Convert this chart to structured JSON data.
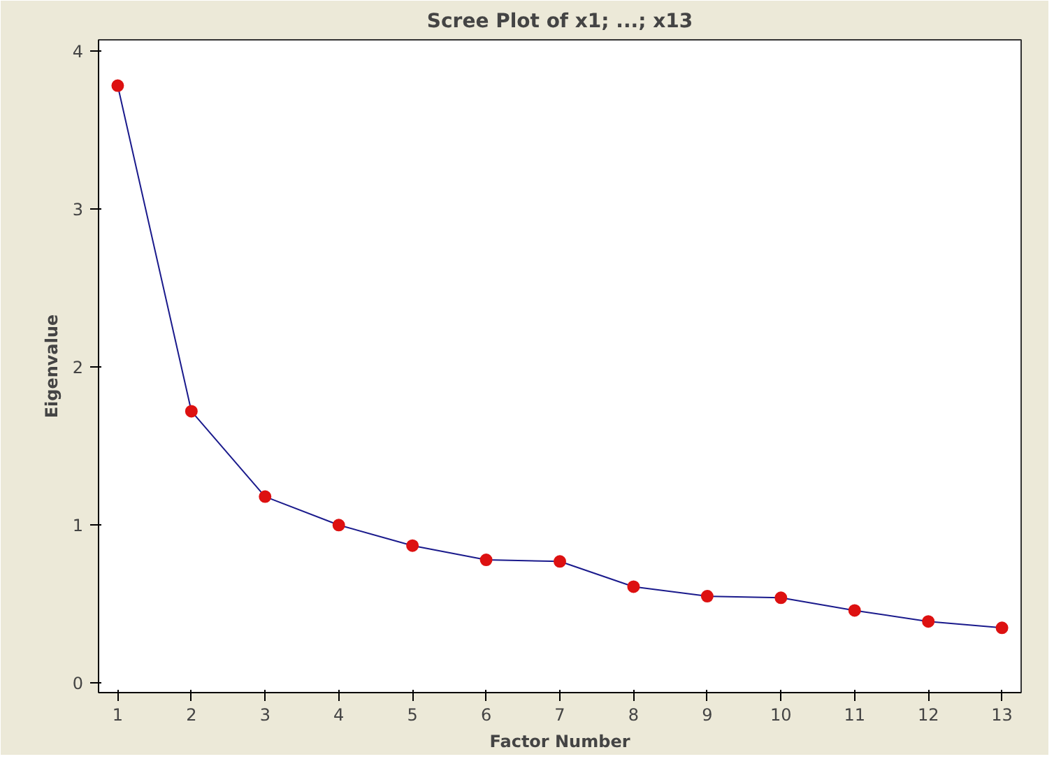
{
  "chart_data": {
    "type": "line",
    "title": "Scree Plot of x1; ...; x13",
    "xlabel": "Factor Number",
    "ylabel": "Eigenvalue",
    "x": [
      1,
      2,
      3,
      4,
      5,
      6,
      7,
      8,
      9,
      10,
      11,
      12,
      13
    ],
    "series": [
      {
        "color": "#1a1a8c",
        "values": [
          3.78,
          1.72,
          1.18,
          1.0,
          0.87,
          0.78,
          0.77,
          0.61,
          0.55,
          0.54,
          0.46,
          0.39,
          0.35
        ]
      }
    ],
    "marker": "circle",
    "line_style": "solid",
    "grid": false,
    "xlim": [
      0.74,
      13.26
    ],
    "ylim": [
      -0.06,
      4.07
    ],
    "xticks": [
      1,
      2,
      3,
      4,
      5,
      6,
      7,
      8,
      9,
      10,
      11,
      12,
      13
    ],
    "yticks": [
      0,
      1,
      2,
      3,
      4
    ]
  }
}
